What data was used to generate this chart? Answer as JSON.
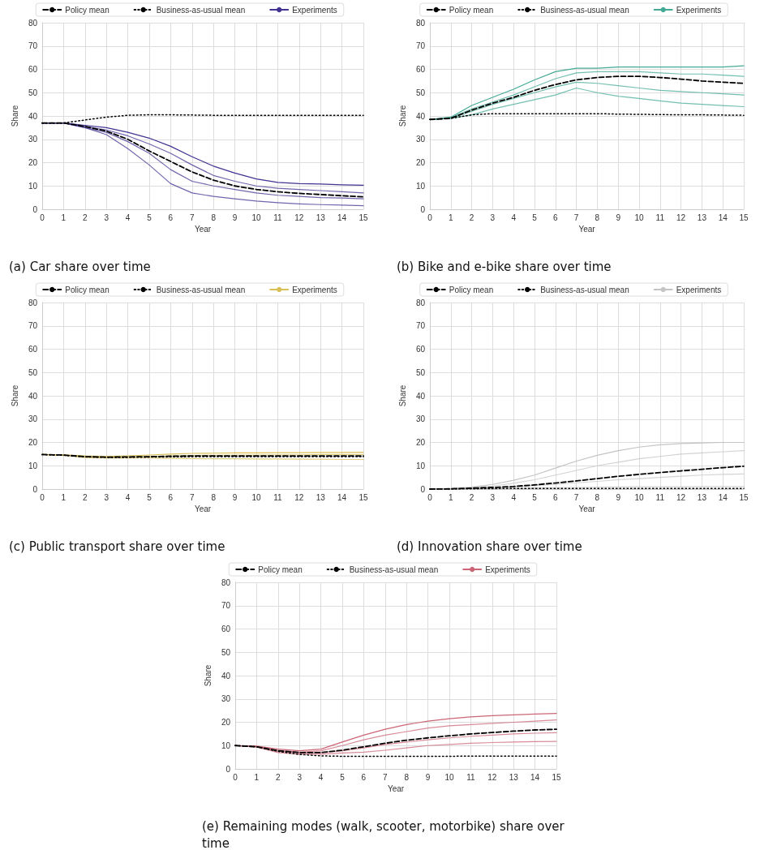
{
  "chart_data": [
    {
      "type": "line",
      "title": "(a) Car share over time",
      "xlabel": "Year",
      "ylabel": "Share",
      "x": [
        0,
        1,
        2,
        3,
        4,
        5,
        6,
        7,
        8,
        9,
        10,
        11,
        12,
        13,
        14,
        15
      ],
      "xlim": [
        0,
        15
      ],
      "xticks": [
        0,
        1,
        2,
        3,
        4,
        5,
        6,
        7,
        8,
        9,
        10,
        11,
        12,
        13,
        14,
        15
      ],
      "ylim": [
        0,
        80
      ],
      "yticks": [
        0,
        10,
        20,
        30,
        40,
        50,
        60,
        70,
        80
      ],
      "grid": true,
      "legend": "top",
      "series": [
        {
          "name": "Experiments",
          "color": "#433291",
          "values": [
            37,
            37,
            36,
            35,
            33,
            30.5,
            27,
            22.5,
            18.5,
            15.5,
            13,
            11.5,
            11,
            10.8,
            10.5,
            10.3
          ]
        },
        {
          "color": "#433291",
          "values": [
            37,
            37,
            35.5,
            34,
            31.5,
            28,
            24,
            19,
            14.5,
            12,
            10,
            9,
            8.5,
            8,
            7.5,
            7
          ]
        },
        {
          "color": "#433291",
          "values": [
            37,
            37,
            35,
            33,
            29,
            24,
            17,
            12,
            10,
            8.5,
            7,
            6,
            5.5,
            5,
            4.8,
            4.5
          ]
        },
        {
          "color": "#433291",
          "values": [
            37,
            37,
            35,
            32,
            26,
            19,
            11,
            7,
            5.5,
            4.5,
            3.5,
            2.8,
            2.3,
            2,
            1.8,
            1.5
          ]
        },
        {
          "name": "Policy mean",
          "color": "#000000",
          "line_style": "dashed",
          "values": [
            37,
            37,
            35.5,
            33.5,
            30,
            25,
            20.5,
            16,
            12.5,
            10,
            8.5,
            7.5,
            6.8,
            6.3,
            5.8,
            5.3
          ]
        },
        {
          "name": "Business-as-usual mean",
          "color": "#000000",
          "line_style": "dotted",
          "values": [
            37,
            37,
            38.3,
            39.5,
            40.3,
            40.5,
            40.5,
            40.4,
            40.3,
            40.3,
            40.3,
            40.3,
            40.3,
            40.3,
            40.3,
            40.3
          ]
        }
      ]
    },
    {
      "type": "line",
      "title": "(b) Bike and e-bike share over time",
      "xlabel": "Year",
      "ylabel": "Share",
      "x": [
        0,
        1,
        2,
        3,
        4,
        5,
        6,
        7,
        8,
        9,
        10,
        11,
        12,
        13,
        14,
        15
      ],
      "xlim": [
        0,
        15
      ],
      "xticks": [
        0,
        1,
        2,
        3,
        4,
        5,
        6,
        7,
        8,
        9,
        10,
        11,
        12,
        13,
        14,
        15
      ],
      "ylim": [
        0,
        80
      ],
      "yticks": [
        0,
        10,
        20,
        30,
        40,
        50,
        60,
        70,
        80
      ],
      "grid": true,
      "legend": "top",
      "series": [
        {
          "name": "Experiments",
          "color": "#44aa96",
          "values": [
            38.5,
            39.5,
            44.5,
            48,
            51.5,
            55.5,
            59,
            60.5,
            60.5,
            61,
            61,
            61,
            61,
            61,
            61,
            61.5
          ]
        },
        {
          "color": "#44aa96",
          "values": [
            38.5,
            39.3,
            43,
            46,
            49,
            52.5,
            56,
            58.5,
            59,
            59,
            59,
            58.5,
            58,
            58,
            57.5,
            57
          ]
        },
        {
          "color": "#44aa96",
          "values": [
            38.5,
            39,
            42,
            45,
            47.5,
            50,
            52.5,
            54.5,
            54,
            53,
            52,
            51,
            50.5,
            50,
            49.5,
            49
          ]
        },
        {
          "color": "#44aa96",
          "values": [
            38.5,
            39,
            40.5,
            43,
            45,
            47,
            49,
            52,
            50,
            48.5,
            47.5,
            46.5,
            45.5,
            45,
            44.5,
            44
          ]
        },
        {
          "name": "Policy mean",
          "color": "#000000",
          "line_style": "dashed",
          "values": [
            38.5,
            39,
            42.5,
            45.5,
            48,
            51,
            53.5,
            55.5,
            56.5,
            57,
            57,
            56.5,
            55.8,
            55,
            54.5,
            54
          ]
        },
        {
          "name": "Business-as-usual mean",
          "color": "#000000",
          "line_style": "dotted",
          "values": [
            38.5,
            39,
            40.5,
            41,
            41,
            41,
            41,
            41,
            41,
            40.8,
            40.7,
            40.6,
            40.5,
            40.5,
            40.4,
            40.3
          ]
        }
      ]
    },
    {
      "type": "line",
      "title": "(c) Public transport share over time",
      "xlabel": "Year",
      "ylabel": "Share",
      "x": [
        0,
        1,
        2,
        3,
        4,
        5,
        6,
        7,
        8,
        9,
        10,
        11,
        12,
        13,
        14,
        15
      ],
      "xlim": [
        0,
        15
      ],
      "xticks": [
        0,
        1,
        2,
        3,
        4,
        5,
        6,
        7,
        8,
        9,
        10,
        11,
        12,
        13,
        14,
        15
      ],
      "ylim": [
        0,
        80
      ],
      "yticks": [
        0,
        10,
        20,
        30,
        40,
        50,
        60,
        70,
        80
      ],
      "grid": true,
      "legend": "top",
      "series": [
        {
          "name": "Experiments",
          "color": "#d8bf56",
          "values": [
            14.8,
            14.7,
            14.2,
            14,
            14.2,
            14.6,
            15,
            15.3,
            15.4,
            15.5,
            15.5,
            15.6,
            15.6,
            15.7,
            15.7,
            15.8
          ]
        },
        {
          "color": "#d8bf56",
          "values": [
            14.8,
            14.6,
            13.9,
            13.7,
            13.8,
            14,
            14.2,
            14.4,
            14.5,
            14.6,
            14.6,
            14.7,
            14.7,
            14.8,
            14.8,
            14.8
          ]
        },
        {
          "color": "#d8bf56",
          "values": [
            14.8,
            14.5,
            13.5,
            13.3,
            13.3,
            13.3,
            13.2,
            13.1,
            13,
            13,
            12.9,
            12.9,
            12.8,
            12.8,
            12.7,
            12.7
          ]
        },
        {
          "name": "Policy mean",
          "color": "#000000",
          "line_style": "dashed",
          "values": [
            14.8,
            14.6,
            13.9,
            13.7,
            13.8,
            13.9,
            14.1,
            14.2,
            14.2,
            14.2,
            14.2,
            14.2,
            14.2,
            14.2,
            14.2,
            14.2
          ]
        },
        {
          "name": "Business-as-usual mean",
          "color": "#000000",
          "line_style": "dotted",
          "values": [
            14.8,
            14.5,
            13.8,
            13.6,
            13.6,
            13.7,
            13.8,
            13.9,
            13.9,
            13.9,
            13.9,
            13.9,
            13.9,
            13.9,
            13.9,
            13.9
          ]
        }
      ]
    },
    {
      "type": "line",
      "title": "(d) Innovation share over time",
      "xlabel": "Year",
      "ylabel": "Share",
      "x": [
        0,
        1,
        2,
        3,
        4,
        5,
        6,
        7,
        8,
        9,
        10,
        11,
        12,
        13,
        14,
        15
      ],
      "xlim": [
        0,
        15
      ],
      "xticks": [
        0,
        1,
        2,
        3,
        4,
        5,
        6,
        7,
        8,
        9,
        10,
        11,
        12,
        13,
        14,
        15
      ],
      "ylim": [
        0,
        80
      ],
      "yticks": [
        0,
        10,
        20,
        30,
        40,
        50,
        60,
        70,
        80
      ],
      "grid": true,
      "legend": "top",
      "series": [
        {
          "name": "Experiments",
          "color": "#c4c4c4",
          "values": [
            0,
            0.2,
            0.8,
            2,
            3.8,
            6,
            9,
            12,
            14.5,
            16.5,
            18,
            19,
            19.5,
            19.8,
            20,
            20
          ]
        },
        {
          "color": "#c4c4c4",
          "values": [
            0,
            0.1,
            0.6,
            1.3,
            2.5,
            4,
            6,
            8,
            10,
            11.5,
            13,
            14,
            15,
            15.5,
            16,
            16.5
          ]
        },
        {
          "color": "#c4c4c4",
          "values": [
            0,
            0.1,
            0.3,
            0.6,
            1,
            1.5,
            2,
            2.7,
            3.3,
            4,
            4.5,
            5,
            5.5,
            6,
            6.3,
            6.5
          ]
        },
        {
          "color": "#c4c4c4",
          "values": [
            0,
            0,
            0.1,
            0.2,
            0.3,
            0.5,
            0.6,
            0.7,
            0.8,
            0.9,
            1,
            1,
            1,
            1.1,
            1.1,
            1.1
          ]
        },
        {
          "name": "Policy mean",
          "color": "#000000",
          "line_style": "dashed",
          "values": [
            0,
            0.1,
            0.4,
            0.7,
            1.1,
            1.8,
            2.6,
            3.5,
            4.5,
            5.5,
            6.3,
            7.1,
            7.8,
            8.5,
            9.2,
            9.8
          ]
        },
        {
          "name": "Business-as-usual mean",
          "color": "#000000",
          "line_style": "dotted",
          "values": [
            0,
            0,
            0.1,
            0.2,
            0.3,
            0.3,
            0.3,
            0.3,
            0.3,
            0.3,
            0.3,
            0.3,
            0.3,
            0.3,
            0.3,
            0.3
          ]
        }
      ]
    },
    {
      "type": "line",
      "title": "(e) Remaining modes (walk, scooter, motorbike) share over time",
      "xlabel": "Year",
      "ylabel": "Share",
      "x": [
        0,
        1,
        2,
        3,
        4,
        5,
        6,
        7,
        8,
        9,
        10,
        11,
        12,
        13,
        14,
        15
      ],
      "xlim": [
        0,
        15
      ],
      "xticks": [
        0,
        1,
        2,
        3,
        4,
        5,
        6,
        7,
        8,
        9,
        10,
        11,
        12,
        13,
        14,
        15
      ],
      "ylim": [
        0,
        80
      ],
      "yticks": [
        0,
        10,
        20,
        30,
        40,
        50,
        60,
        70,
        80
      ],
      "grid": true,
      "legend": "top",
      "series": [
        {
          "name": "Experiments",
          "color": "#cc6677",
          "values": [
            10,
            9.8,
            8.5,
            7.8,
            8.5,
            11.5,
            14.5,
            17,
            19,
            20.5,
            21.5,
            22.3,
            22.8,
            23.2,
            23.5,
            23.8
          ]
        },
        {
          "color": "#cc6677",
          "values": [
            10,
            9.6,
            8,
            7.2,
            7.8,
            10,
            12.5,
            14.5,
            16,
            17.5,
            18.5,
            19,
            19.5,
            20,
            20.5,
            21
          ]
        },
        {
          "color": "#cc6677",
          "values": [
            10,
            9.5,
            7.5,
            6.8,
            7,
            7.8,
            9,
            10.5,
            11.5,
            12.5,
            13.3,
            14,
            14.5,
            15,
            15.3,
            15.5
          ]
        },
        {
          "color": "#cc6677",
          "values": [
            10,
            9.3,
            7,
            6.3,
            6.3,
            6.8,
            7.2,
            8,
            9,
            10,
            10.5,
            11,
            11.3,
            11.5,
            11.7,
            11.8
          ]
        },
        {
          "name": "Policy mean",
          "color": "#000000",
          "line_style": "dashed",
          "values": [
            10,
            9.5,
            7.8,
            7,
            7,
            8,
            9.5,
            11,
            12.3,
            13.3,
            14.2,
            15,
            15.6,
            16.2,
            16.7,
            17
          ]
        },
        {
          "name": "Business-as-usual mean",
          "color": "#000000",
          "line_style": "dotted",
          "values": [
            10,
            9.5,
            7.5,
            6.2,
            5.6,
            5.4,
            5.4,
            5.4,
            5.4,
            5.4,
            5.4,
            5.5,
            5.5,
            5.5,
            5.5,
            5.5
          ]
        }
      ]
    }
  ]
}
